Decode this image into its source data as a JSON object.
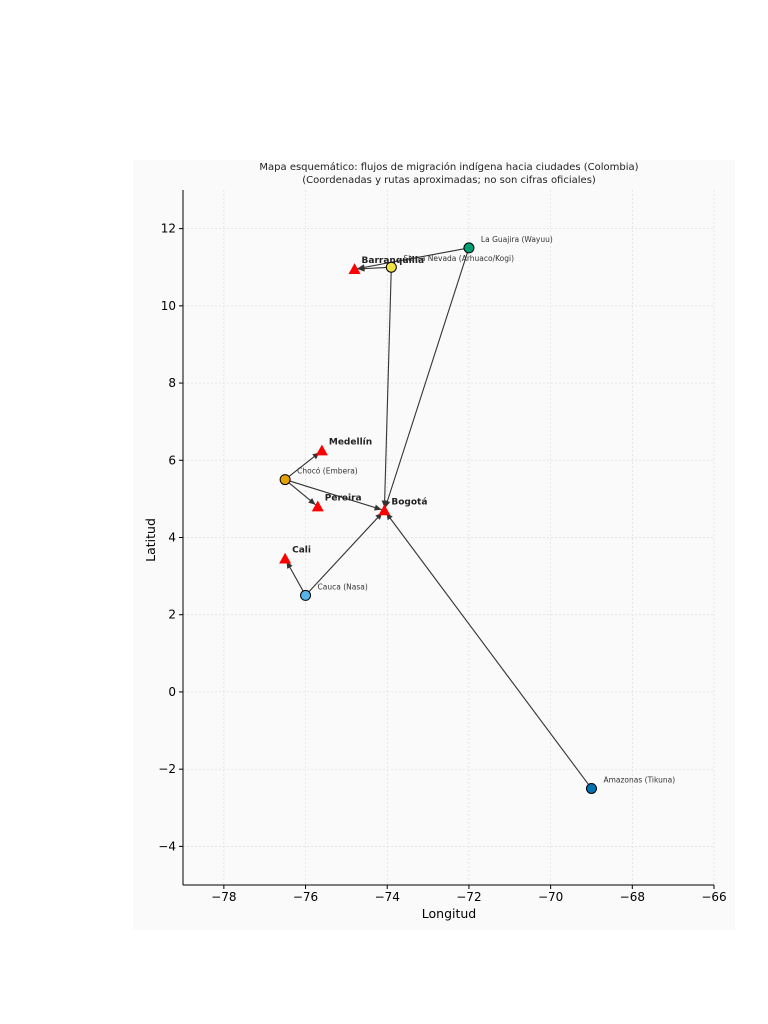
{
  "chart_data": {
    "type": "scatter",
    "title": "Mapa esquemático: flujos de migración indígena hacia ciudades (Colombia)",
    "subtitle": "(Coordenadas y rutas aproximadas; no son cifras oficiales)",
    "xlabel": "Longitud",
    "ylabel": "Latitud",
    "xlim": [
      -79,
      -66
    ],
    "ylim": [
      -5,
      13
    ],
    "xticks": [
      -78,
      -76,
      -74,
      -72,
      -70,
      -68,
      -66
    ],
    "yticks": [
      -4,
      -2,
      0,
      2,
      4,
      6,
      8,
      10,
      12
    ],
    "grid": true,
    "origins": [
      {
        "name": "La Guajira (Wayuu)",
        "x": -72.0,
        "y": 11.5,
        "color": "#009e73"
      },
      {
        "name": "Sierra Nevada (Arhuaco/Kogi)",
        "x": -73.9,
        "y": 11.0,
        "color": "#f0e442"
      },
      {
        "name": "Chocó (Embera)",
        "x": -76.5,
        "y": 5.5,
        "color": "#e69f00"
      },
      {
        "name": "Cauca (Nasa)",
        "x": -76.0,
        "y": 2.5,
        "color": "#56b4e9"
      },
      {
        "name": "Amazonas (Tikuna)",
        "x": -69.0,
        "y": -2.5,
        "color": "#0072b2"
      }
    ],
    "cities": [
      {
        "name": "Barranquilla",
        "x": -74.8,
        "y": 10.95
      },
      {
        "name": "Medellín",
        "x": -75.6,
        "y": 6.25
      },
      {
        "name": "Pereira",
        "x": -75.7,
        "y": 4.8
      },
      {
        "name": "Bogotá",
        "x": -74.07,
        "y": 4.7
      },
      {
        "name": "Cali",
        "x": -76.5,
        "y": 3.45
      }
    ],
    "routes": [
      {
        "from": "La Guajira (Wayuu)",
        "to": "Barranquilla"
      },
      {
        "from": "La Guajira (Wayuu)",
        "to": "Bogotá"
      },
      {
        "from": "Sierra Nevada (Arhuaco/Kogi)",
        "to": "Barranquilla"
      },
      {
        "from": "Sierra Nevada (Arhuaco/Kogi)",
        "to": "Bogotá"
      },
      {
        "from": "Chocó (Embera)",
        "to": "Medellín"
      },
      {
        "from": "Chocó (Embera)",
        "to": "Pereira"
      },
      {
        "from": "Chocó (Embera)",
        "to": "Bogotá"
      },
      {
        "from": "Cauca (Nasa)",
        "to": "Cali"
      },
      {
        "from": "Cauca (Nasa)",
        "to": "Bogotá"
      },
      {
        "from": "Amazonas (Tikuna)",
        "to": "Bogotá"
      }
    ],
    "city_marker_color": "#ff0000"
  }
}
